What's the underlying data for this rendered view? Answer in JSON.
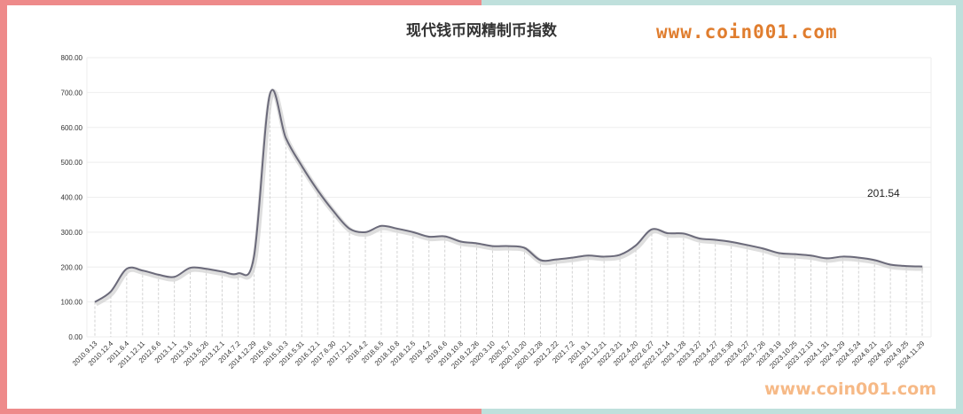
{
  "chart_data": {
    "type": "line",
    "title": "现代钱币网精制币指数",
    "watermark": "www.coin001.com",
    "ylim": [
      0,
      800
    ],
    "yticks": [
      "0.00",
      "100.00",
      "200.00",
      "300.00",
      "400.00",
      "500.00",
      "600.00",
      "700.00",
      "800.00"
    ],
    "grid": true,
    "last_value_label": "201.54",
    "line_color": "#6b6a7a",
    "x": [
      "2010.9.13",
      "2010.12.4",
      "2011.6.4",
      "2011.12.11",
      "2012.6.6",
      "2013.1.1",
      "2013.3.6",
      "2013.5.26",
      "2013.12.1",
      "2014.7.2",
      "2014.12.29",
      "2015.6.6",
      "2015.10.3",
      "2016.5.31",
      "2016.12.1",
      "2017.6.30",
      "2017.12.1",
      "2018.4.2",
      "2018.6.5",
      "2018.10.8",
      "2018.12.5",
      "2019.4.2",
      "2019.6.6",
      "2019.10.8",
      "2019.12.26",
      "2020.3.10",
      "2020.5.7",
      "2020.10.20",
      "2020.12.28",
      "2021.2.22",
      "2021.7.2",
      "2021.9.1",
      "2021.12.21",
      "2022.3.21",
      "2022.4.20",
      "2022.6.27",
      "2022.12.14",
      "2023.1.28",
      "2023.3.27",
      "2023.4.27",
      "2023.5.30",
      "2023.6.27",
      "2023.7.26",
      "2023.9.19",
      "2023.10.25",
      "2023.12.13",
      "2024.1.31",
      "2024.3.29",
      "2024.5.24",
      "2024.6.21",
      "2024.8.22",
      "2024.9.25",
      "2024.11.29"
    ],
    "values": [
      100,
      130,
      195,
      190,
      178,
      172,
      198,
      195,
      187,
      182,
      230,
      695,
      570,
      490,
      420,
      360,
      310,
      300,
      318,
      310,
      300,
      287,
      288,
      273,
      268,
      260,
      260,
      255,
      220,
      222,
      227,
      233,
      230,
      235,
      262,
      308,
      297,
      296,
      282,
      278,
      272,
      263,
      253,
      240,
      237,
      233,
      225,
      230,
      227,
      220,
      207,
      203,
      201.54
    ]
  }
}
